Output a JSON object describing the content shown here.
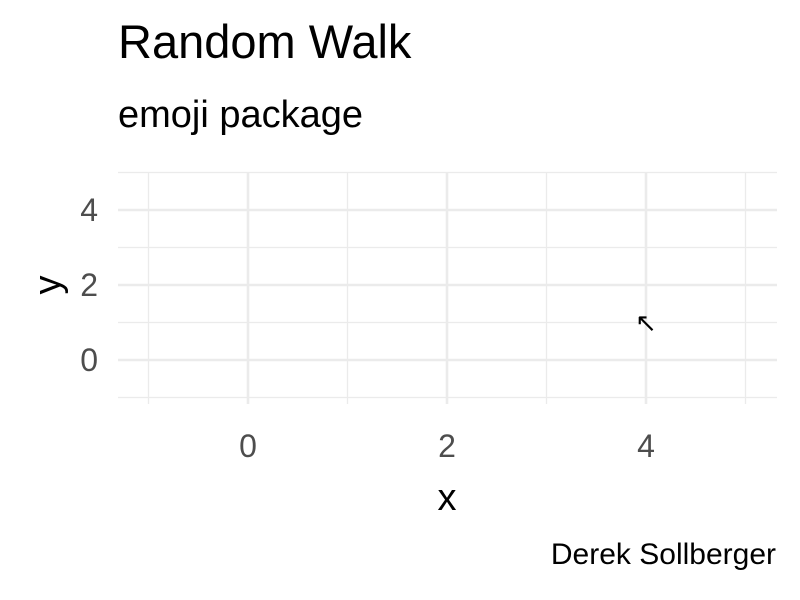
{
  "chart_data": {
    "type": "scatter",
    "title": "Random Walk",
    "subtitle": "emoji package",
    "caption": "Derek Sollberger",
    "xlabel": "x",
    "ylabel": "y",
    "xlim": [
      -1,
      5
    ],
    "ylim": [
      -1,
      5
    ],
    "x_ticks": [
      0,
      2,
      4
    ],
    "y_ticks": [
      0,
      2,
      4
    ],
    "x_tick_labels": [
      "0",
      "2",
      "4"
    ],
    "y_tick_labels": [
      "0",
      "2",
      "4"
    ],
    "x_minor": [
      -1,
      1,
      3,
      5
    ],
    "y_minor": [
      -1,
      1,
      3,
      5
    ],
    "grid": true,
    "points": [
      {
        "x": 4,
        "y": 1,
        "label": "↖"
      }
    ]
  }
}
